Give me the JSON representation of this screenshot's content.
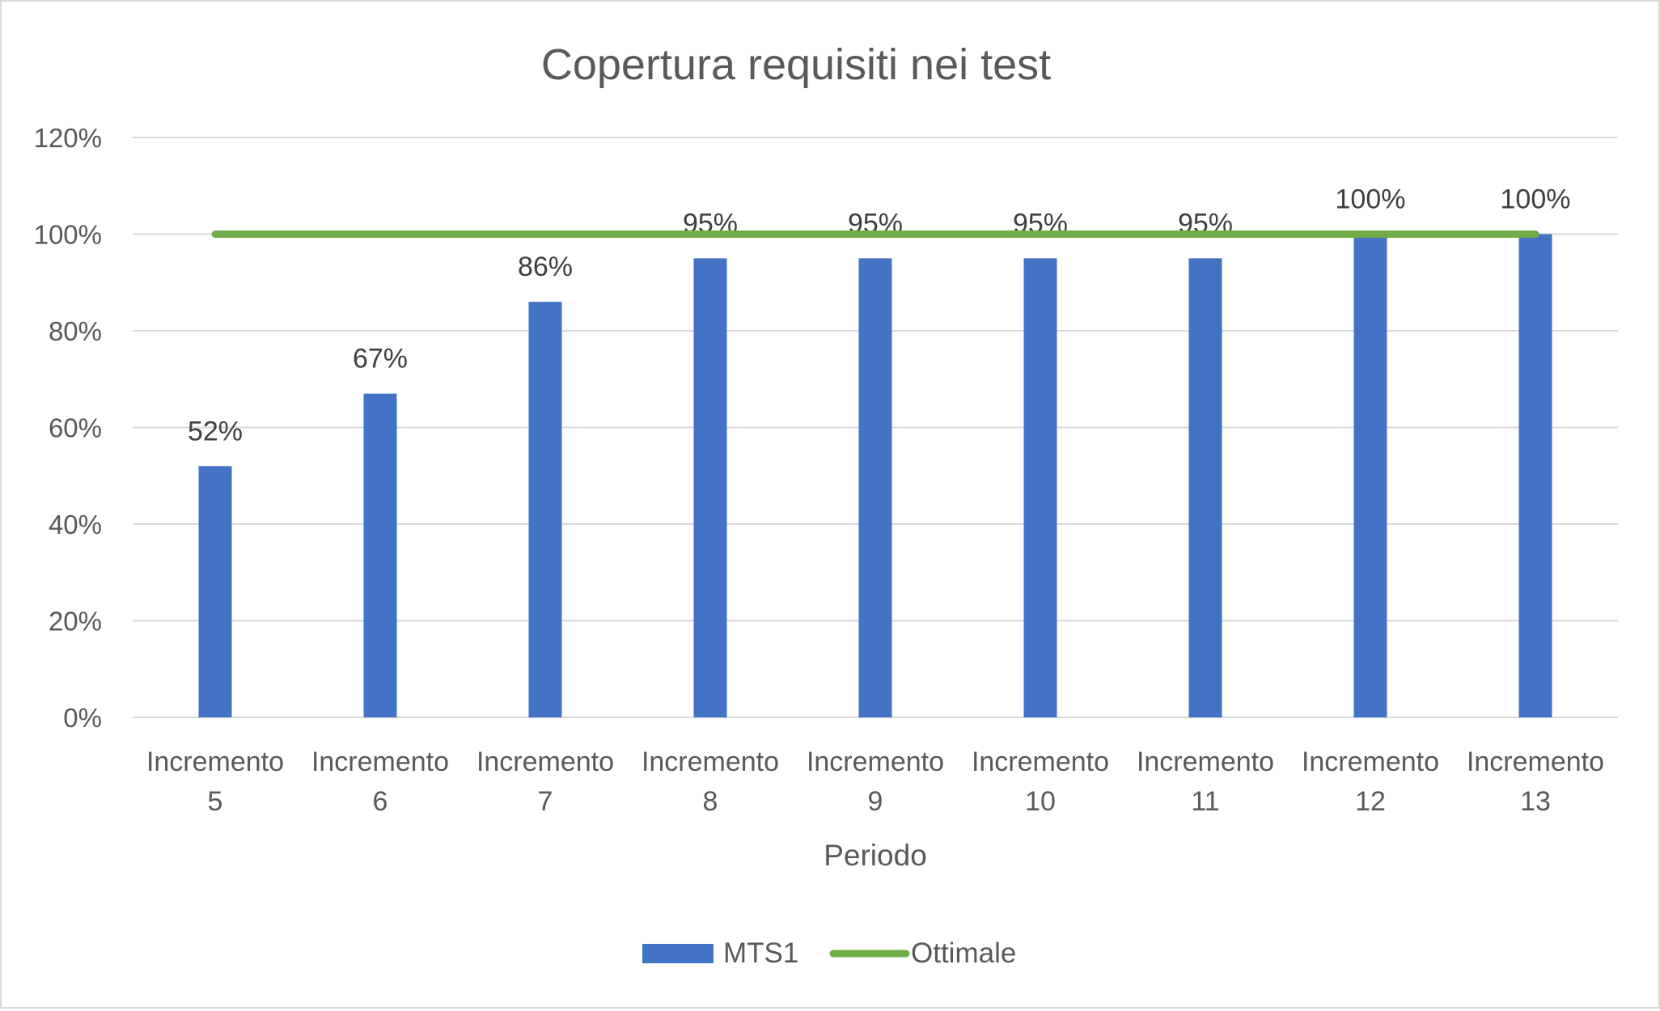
{
  "chart_data": {
    "type": "bar",
    "title": "Copertura requisiti nei test",
    "xlabel": "Periodo",
    "ylabel": "",
    "categories": [
      [
        "Incremento",
        "5"
      ],
      [
        "Incremento",
        "6"
      ],
      [
        "Incremento",
        "7"
      ],
      [
        "Incremento",
        "8"
      ],
      [
        "Incremento",
        "9"
      ],
      [
        "Incremento",
        "10"
      ],
      [
        "Incremento",
        "11"
      ],
      [
        "Incremento",
        "12"
      ],
      [
        "Incremento",
        "13"
      ]
    ],
    "series": [
      {
        "name": "MTS1",
        "kind": "bar",
        "color": "#4472c4",
        "values": [
          52,
          67,
          86,
          95,
          95,
          95,
          95,
          100,
          100
        ],
        "labels": [
          "52%",
          "67%",
          "86%",
          "95%",
          "95%",
          "95%",
          "95%",
          "100%",
          "100%"
        ]
      },
      {
        "name": "Ottimale",
        "kind": "line",
        "color": "#70ad47",
        "values": [
          100,
          100,
          100,
          100,
          100,
          100,
          100,
          100,
          100
        ]
      }
    ],
    "ylim": [
      0,
      120
    ],
    "yticks": [
      0,
      20,
      40,
      60,
      80,
      100,
      120
    ],
    "ytick_labels": [
      "0%",
      "20%",
      "40%",
      "60%",
      "80%",
      "100%",
      "120%"
    ],
    "grid": true,
    "gridline_color": "#d9d9d9",
    "legend_position": "bottom"
  }
}
